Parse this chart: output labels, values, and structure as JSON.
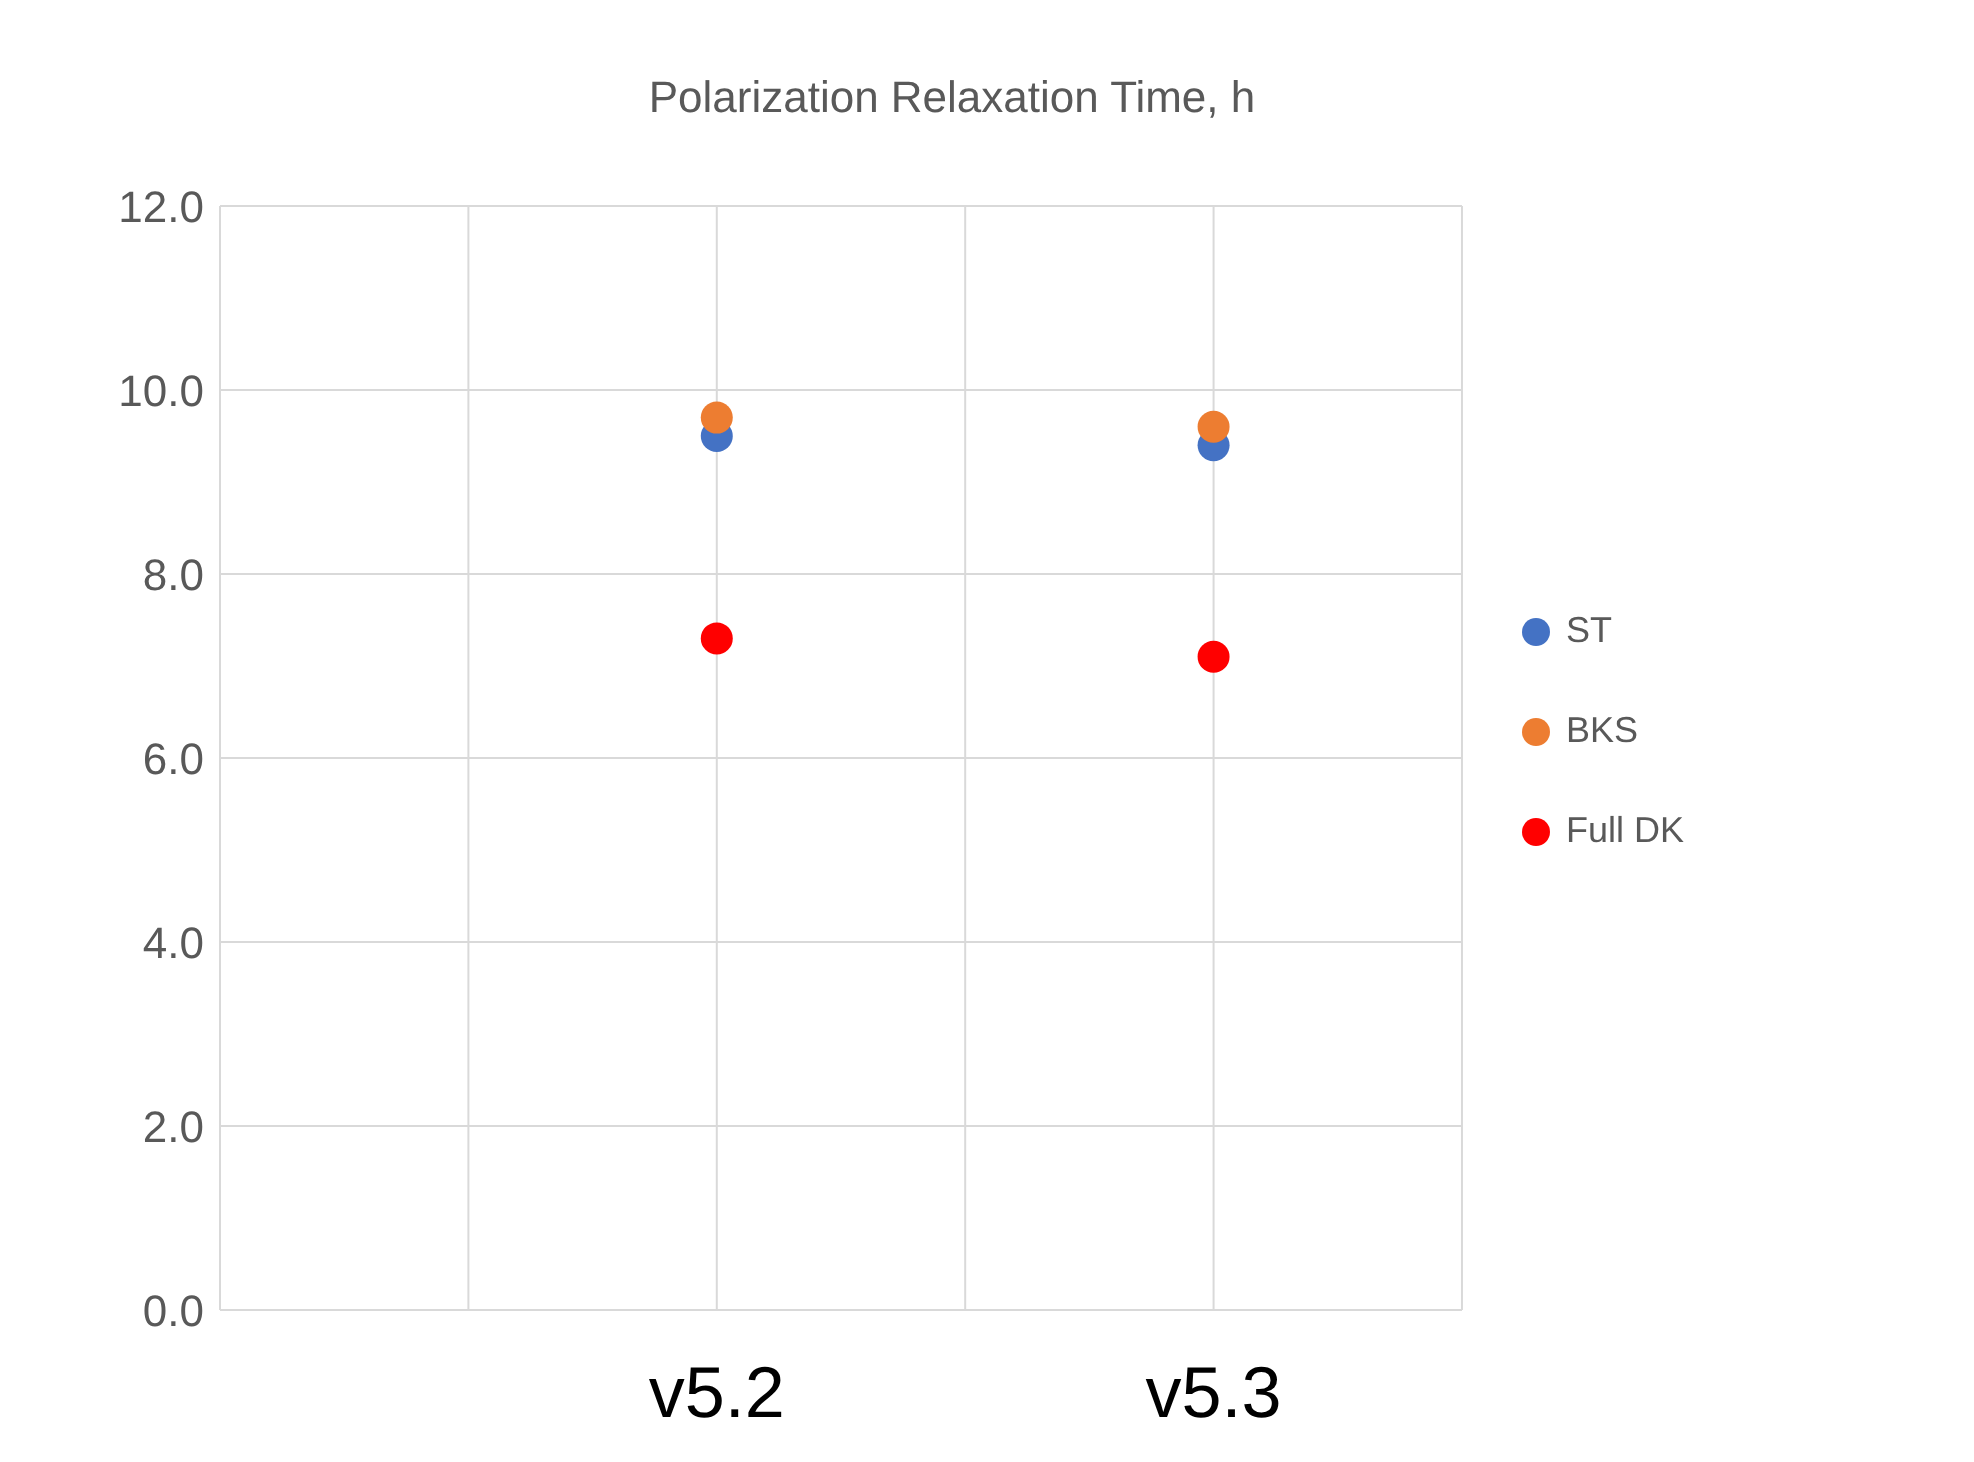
{
  "chart_data": {
    "type": "scatter",
    "title": "Polarization Relaxation Time, h",
    "categories": [
      null,
      null,
      "v5.2",
      null,
      "v5.3",
      null
    ],
    "series": [
      {
        "name": "ST",
        "color": "#4472c4",
        "values": [
          null,
          null,
          9.5,
          null,
          9.4,
          null
        ]
      },
      {
        "name": "BKS",
        "color": "#ed7d31",
        "values": [
          null,
          null,
          9.7,
          null,
          9.6,
          null
        ]
      },
      {
        "name": "Full DK",
        "color": "#ff0000",
        "values": [
          null,
          null,
          7.3,
          null,
          7.1,
          null
        ]
      }
    ],
    "ylim": [
      0,
      12
    ],
    "yticks": [
      {
        "value": 0,
        "label": "0.0"
      },
      {
        "value": 2,
        "label": "2.0"
      },
      {
        "value": 4,
        "label": "4.0"
      },
      {
        "value": 6,
        "label": "6.0"
      },
      {
        "value": 8,
        "label": "8.0"
      },
      {
        "value": 10,
        "label": "10.0"
      },
      {
        "value": 12,
        "label": "12.0"
      }
    ],
    "grid": true,
    "legend": "right",
    "marker": "circle"
  }
}
